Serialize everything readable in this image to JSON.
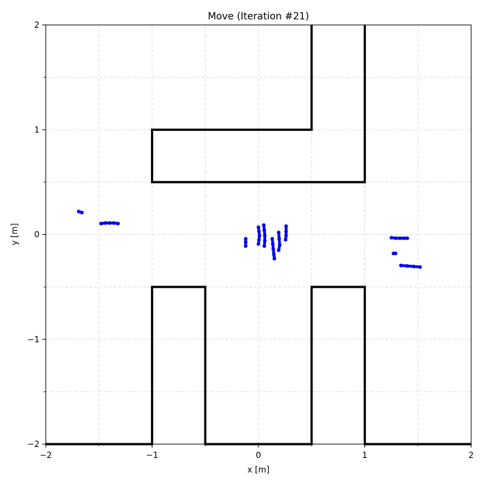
{
  "chart_data": {
    "type": "scatter",
    "title": "Move (Iteration #21)",
    "xlabel": "x [m]",
    "ylabel": "y [m]",
    "xlim": [
      -2,
      2
    ],
    "ylim": [
      -2,
      2
    ],
    "grid": true,
    "xticks": [
      {
        "value": -2,
        "label": "−2"
      },
      {
        "value": -1,
        "label": "−1"
      },
      {
        "value": 0,
        "label": "0"
      },
      {
        "value": 1,
        "label": "1"
      },
      {
        "value": 2,
        "label": "2"
      }
    ],
    "yticks": [
      {
        "value": -2,
        "label": "−2"
      },
      {
        "value": -1,
        "label": "−1"
      },
      {
        "value": 0,
        "label": "0"
      },
      {
        "value": 1,
        "label": "1"
      },
      {
        "value": 2,
        "label": "2"
      }
    ],
    "minor_ticks": [
      -1.5,
      -0.5,
      0.5,
      1.5
    ],
    "colors": {
      "walls": "#000000",
      "particles": "#0000ee",
      "grid": "#dddddd"
    },
    "walls": [
      [
        [
          0.5,
          2
        ],
        [
          0.5,
          1
        ],
        [
          -1,
          1
        ],
        [
          -1,
          0.5
        ],
        [
          1,
          0.5
        ],
        [
          1,
          2
        ]
      ],
      [
        [
          -2,
          -2
        ],
        [
          -1,
          -2
        ],
        [
          -1,
          -0.5
        ],
        [
          -0.5,
          -0.5
        ],
        [
          -0.5,
          -2
        ],
        [
          0.5,
          -2
        ],
        [
          0.5,
          -0.5
        ],
        [
          1,
          -0.5
        ],
        [
          1,
          -2
        ],
        [
          2,
          -2
        ]
      ]
    ],
    "particle_clusters": [
      {
        "x": [
          -1.69,
          -1.66
        ],
        "y": [
          0.22,
          0.21
        ]
      },
      {
        "x": [
          -1.48,
          -1.44,
          -1.4,
          -1.36,
          -1.32
        ],
        "y": [
          0.105,
          0.11,
          0.11,
          0.11,
          0.105
        ]
      },
      {
        "x": [
          -0.12,
          -0.12,
          -0.12
        ],
        "y": [
          -0.04,
          -0.07,
          -0.11
        ]
      },
      {
        "x": [
          0.0,
          0.005,
          0.01,
          0.005,
          0.0
        ],
        "y": [
          0.07,
          0.03,
          -0.01,
          -0.05,
          -0.09
        ]
      },
      {
        "x": [
          0.05,
          0.055,
          0.06,
          0.06,
          0.055
        ],
        "y": [
          0.09,
          0.04,
          -0.01,
          -0.06,
          -0.11
        ]
      },
      {
        "x": [
          0.13,
          0.135,
          0.14,
          0.145,
          0.15
        ],
        "y": [
          -0.04,
          -0.09,
          -0.14,
          -0.19,
          -0.23
        ]
      },
      {
        "x": [
          0.19,
          0.195,
          0.2,
          0.19
        ],
        "y": [
          0.02,
          -0.04,
          -0.1,
          -0.15
        ]
      },
      {
        "x": [
          0.26,
          0.26,
          0.26,
          0.255
        ],
        "y": [
          0.08,
          0.03,
          -0.01,
          -0.05
        ]
      },
      {
        "x": [
          1.25,
          1.29,
          1.33,
          1.37,
          1.4
        ],
        "y": [
          -0.03,
          -0.035,
          -0.035,
          -0.035,
          -0.035
        ]
      },
      {
        "x": [
          1.27,
          1.29
        ],
        "y": [
          -0.18,
          -0.18
        ]
      },
      {
        "x": [
          1.34,
          1.4,
          1.46,
          1.52
        ],
        "y": [
          -0.295,
          -0.3,
          -0.305,
          -0.31
        ]
      }
    ]
  }
}
